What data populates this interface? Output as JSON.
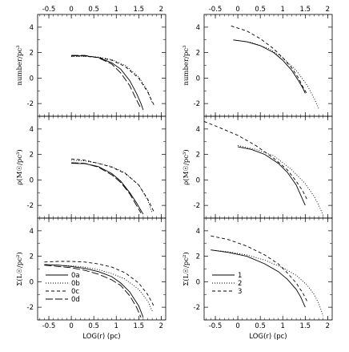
{
  "figure": {
    "xlabel": "LOG(r) (pc)",
    "x_ticklabels": [
      "-0.5",
      "0",
      "0.5",
      "1",
      "1.5",
      "2"
    ],
    "y_ticklabels": [
      "4",
      "2",
      "0",
      "-2"
    ],
    "row_ylabels": [
      "number/pc³",
      "ρ(M☉/pc³)",
      "Σ(L☉/pc²)"
    ]
  },
  "chart_data": [
    {
      "type": "line",
      "panel": "left-top",
      "ylabel": "number/pc³",
      "xlim": [
        -0.75,
        2.1
      ],
      "ylim": [
        -3,
        5
      ],
      "series": [
        {
          "style": "solid",
          "x": [
            0.0,
            0.3,
            0.6,
            0.9,
            1.1,
            1.3,
            1.45,
            1.55,
            1.6
          ],
          "y": [
            1.75,
            1.75,
            1.62,
            1.2,
            0.7,
            -0.2,
            -1.2,
            -2.0,
            -2.5
          ]
        },
        {
          "style": "dotted",
          "x": [
            0.0,
            0.3,
            0.6,
            0.9,
            1.2,
            1.5,
            1.7,
            1.8
          ],
          "y": [
            1.7,
            1.72,
            1.65,
            1.45,
            1.0,
            0.1,
            -1.0,
            -2.0
          ]
        },
        {
          "style": "short-dash",
          "x": [
            0.0,
            0.3,
            0.6,
            0.9,
            1.2,
            1.5,
            1.7,
            1.85
          ],
          "y": [
            1.72,
            1.72,
            1.62,
            1.4,
            0.9,
            0.0,
            -1.1,
            -2.2
          ]
        },
        {
          "style": "long-dash",
          "x": [
            0.0,
            0.3,
            0.6,
            0.9,
            1.1,
            1.3,
            1.45,
            1.55
          ],
          "y": [
            1.78,
            1.78,
            1.6,
            1.1,
            0.4,
            -0.6,
            -1.7,
            -2.4
          ]
        }
      ]
    },
    {
      "type": "line",
      "panel": "right-top",
      "ylabel": "number/pc³",
      "xlim": [
        -0.75,
        2.1
      ],
      "ylim": [
        -3,
        5
      ],
      "series": [
        {
          "style": "solid",
          "x": [
            -0.1,
            0.2,
            0.5,
            0.8,
            1.0,
            1.2,
            1.35,
            1.45,
            1.5
          ],
          "y": [
            3.0,
            2.85,
            2.55,
            2.0,
            1.4,
            0.6,
            -0.2,
            -0.8,
            -1.2
          ]
        },
        {
          "style": "dotted",
          "x": [
            -0.1,
            0.3,
            0.7,
            1.0,
            1.3,
            1.55,
            1.7,
            1.8
          ],
          "y": [
            3.0,
            2.8,
            2.3,
            1.6,
            0.6,
            -0.6,
            -1.6,
            -2.4
          ]
        },
        {
          "style": "short-dash",
          "x": [
            -0.15,
            0.2,
            0.5,
            0.8,
            1.0,
            1.2,
            1.35,
            1.45,
            1.55
          ],
          "y": [
            4.1,
            3.7,
            3.1,
            2.3,
            1.6,
            0.8,
            0.0,
            -0.7,
            -1.3
          ]
        }
      ]
    },
    {
      "type": "line",
      "panel": "left-middle",
      "ylabel": "ρ(M☉/pc³)",
      "xlim": [
        -0.75,
        2.1
      ],
      "ylim": [
        -3,
        5
      ],
      "series": [
        {
          "style": "solid",
          "x": [
            0.0,
            0.3,
            0.6,
            0.9,
            1.1,
            1.3,
            1.45,
            1.55,
            1.6
          ],
          "y": [
            1.3,
            1.28,
            1.05,
            0.5,
            -0.1,
            -1.0,
            -1.8,
            -2.4,
            -2.7
          ]
        },
        {
          "style": "dotted",
          "x": [
            0.0,
            0.3,
            0.6,
            0.9,
            1.2,
            1.5,
            1.7,
            1.8
          ],
          "y": [
            1.55,
            1.5,
            1.3,
            1.05,
            0.55,
            -0.4,
            -1.6,
            -2.6
          ]
        },
        {
          "style": "short-dash",
          "x": [
            0.0,
            0.3,
            0.6,
            0.9,
            1.2,
            1.5,
            1.7,
            1.85
          ],
          "y": [
            1.65,
            1.55,
            1.3,
            1.0,
            0.5,
            -0.4,
            -1.5,
            -2.6
          ]
        },
        {
          "style": "long-dash",
          "x": [
            0.0,
            0.3,
            0.6,
            0.9,
            1.1,
            1.3,
            1.45,
            1.55
          ],
          "y": [
            1.35,
            1.3,
            1.0,
            0.4,
            -0.2,
            -1.1,
            -2.0,
            -2.6
          ]
        }
      ]
    },
    {
      "type": "line",
      "panel": "right-middle",
      "ylabel": "ρ(M☉/pc³)",
      "xlim": [
        -0.75,
        2.1
      ],
      "ylim": [
        -3,
        5
      ],
      "series": [
        {
          "style": "solid",
          "x": [
            0.0,
            0.3,
            0.6,
            0.9,
            1.1,
            1.3,
            1.4,
            1.5
          ],
          "y": [
            2.6,
            2.4,
            2.0,
            1.3,
            0.6,
            -0.4,
            -1.2,
            -2.0
          ]
        },
        {
          "style": "dotted",
          "x": [
            0.0,
            0.4,
            0.8,
            1.2,
            1.5,
            1.7,
            1.8,
            1.9
          ],
          "y": [
            2.7,
            2.4,
            1.9,
            0.8,
            -0.3,
            -1.3,
            -2.0,
            -2.8
          ]
        },
        {
          "style": "short-dash",
          "x": [
            -0.75,
            -0.4,
            0.0,
            0.4,
            0.8,
            1.1,
            1.3,
            1.45,
            1.55
          ],
          "y": [
            4.6,
            4.1,
            3.5,
            2.7,
            1.7,
            0.8,
            -0.1,
            -0.9,
            -1.6
          ]
        }
      ]
    },
    {
      "type": "line",
      "panel": "left-bottom",
      "ylabel": "Σ(L☉/pc²)",
      "xlim": [
        -0.75,
        2.1
      ],
      "ylim": [
        -3,
        5
      ],
      "legend": {
        "placement": "lower-left",
        "entries": [
          "0a",
          "0b",
          "0c",
          "0d"
        ]
      },
      "series": [
        {
          "name": "0a",
          "style": "solid",
          "x": [
            -0.6,
            -0.3,
            0.0,
            0.3,
            0.6,
            0.9,
            1.1,
            1.3,
            1.5,
            1.6
          ],
          "y": [
            1.35,
            1.3,
            1.2,
            1.05,
            0.8,
            0.4,
            -0.1,
            -0.8,
            -1.9,
            -2.8
          ]
        },
        {
          "name": "0b",
          "style": "dotted",
          "x": [
            -0.6,
            -0.3,
            0.0,
            0.3,
            0.6,
            0.9,
            1.2,
            1.5,
            1.7,
            1.8
          ],
          "y": [
            1.35,
            1.3,
            1.25,
            1.15,
            0.95,
            0.65,
            0.2,
            -0.6,
            -1.5,
            -2.3
          ]
        },
        {
          "name": "0c",
          "style": "short-dash",
          "x": [
            -0.6,
            -0.3,
            0.0,
            0.3,
            0.6,
            0.9,
            1.2,
            1.5,
            1.7,
            1.85
          ],
          "y": [
            1.55,
            1.6,
            1.6,
            1.55,
            1.4,
            1.15,
            0.7,
            -0.1,
            -1.0,
            -2.0
          ]
        },
        {
          "name": "0d",
          "style": "long-dash",
          "x": [
            -0.6,
            -0.3,
            0.0,
            0.3,
            0.6,
            0.9,
            1.1,
            1.3,
            1.45,
            1.55
          ],
          "y": [
            1.3,
            1.2,
            1.1,
            0.9,
            0.6,
            0.15,
            -0.3,
            -1.1,
            -2.0,
            -2.8
          ]
        }
      ]
    },
    {
      "type": "line",
      "panel": "right-bottom",
      "ylabel": "Σ(L☉/pc²)",
      "xlim": [
        -0.75,
        2.1
      ],
      "ylim": [
        -3,
        5
      ],
      "legend": {
        "placement": "lower-left",
        "entries": [
          "1",
          "2",
          "3"
        ]
      },
      "series": [
        {
          "name": "1",
          "style": "solid",
          "x": [
            -0.6,
            -0.2,
            0.2,
            0.6,
            0.9,
            1.1,
            1.3,
            1.4,
            1.5
          ],
          "y": [
            2.5,
            2.3,
            2.0,
            1.4,
            0.8,
            0.2,
            -0.6,
            -1.2,
            -2.0
          ]
        },
        {
          "name": "2",
          "style": "dotted",
          "x": [
            -0.6,
            -0.2,
            0.2,
            0.6,
            1.0,
            1.3,
            1.55,
            1.7,
            1.8,
            1.9
          ],
          "y": [
            2.5,
            2.35,
            2.1,
            1.7,
            1.1,
            0.5,
            -0.3,
            -1.0,
            -1.7,
            -2.7
          ]
        },
        {
          "name": "3",
          "style": "short-dash",
          "x": [
            -0.6,
            -0.2,
            0.2,
            0.6,
            0.9,
            1.1,
            1.3,
            1.45,
            1.55
          ],
          "y": [
            3.6,
            3.3,
            2.8,
            2.1,
            1.4,
            0.7,
            -0.1,
            -0.9,
            -1.6
          ]
        }
      ]
    }
  ]
}
